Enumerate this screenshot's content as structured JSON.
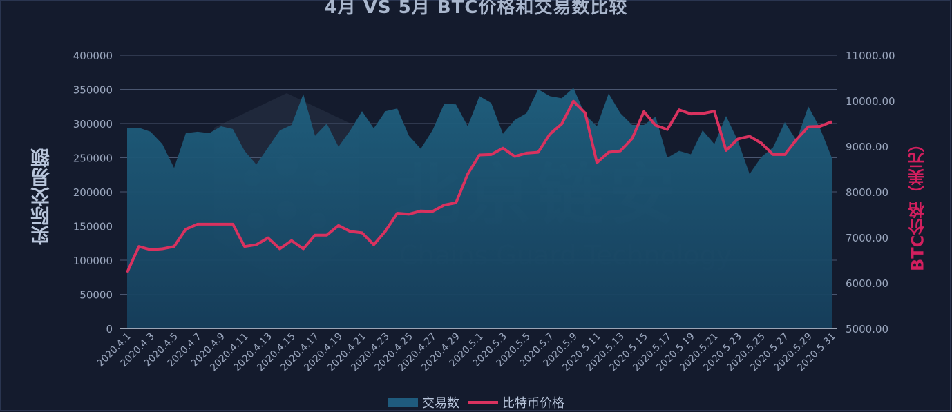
{
  "title": "4月 VS 5月 BTC价格和交易数比较",
  "y_left_label": "实际交易额",
  "y_right_label": "BTC价格（美元）",
  "legend": {
    "area_label": "交易数",
    "line_label": "比特币价格"
  },
  "watermark": {
    "main": "北京链安",
    "sub": "Chains Guard Technology",
    "icon": "shield-hexagon-logo"
  },
  "colors": {
    "background": "#141b2d",
    "area": "#1f5b7d",
    "line": "#d9325f",
    "grid": "#4a5670",
    "tick_text": "#9aa6bd",
    "right_label": "#d21f5e"
  },
  "chart_data": {
    "type": "area",
    "x": [
      "2020.4.1",
      "2020.4.2",
      "2020.4.3",
      "2020.4.4",
      "2020.4.5",
      "2020.4.6",
      "2020.4.7",
      "2020.4.8",
      "2020.4.9",
      "2020.4.10",
      "2020.4.11",
      "2020.4.12",
      "2020.4.13",
      "2020.4.14",
      "2020.4.15",
      "2020.4.16",
      "2020.4.17",
      "2020.4.18",
      "2020.4.19",
      "2020.4.20",
      "2020.4.21",
      "2020.4.22",
      "2020.4.23",
      "2020.4.24",
      "2020.4.25",
      "2020.4.26",
      "2020.4.27",
      "2020.4.28",
      "2020.4.29",
      "2020.4.30",
      "2020.5.1",
      "2020.5.2",
      "2020.5.3",
      "2020.5.4",
      "2020.5.5",
      "2020.5.6",
      "2020.5.7",
      "2020.5.8",
      "2020.5.9",
      "2020.5.10",
      "2020.5.11",
      "2020.5.12",
      "2020.5.13",
      "2020.5.14",
      "2020.5.15",
      "2020.5.16",
      "2020.5.17",
      "2020.5.18",
      "2020.5.19",
      "2020.5.20",
      "2020.5.21",
      "2020.5.22",
      "2020.5.23",
      "2020.5.24",
      "2020.5.25",
      "2020.5.26",
      "2020.5.27",
      "2020.5.28",
      "2020.5.29",
      "2020.5.30",
      "2020.5.31"
    ],
    "x_tick_labels": [
      "2020.4.1",
      "2020.4.3",
      "2020.4.5",
      "2020.4.7",
      "2020.4.9",
      "2020.4.11",
      "2020.4.13",
      "2020.4.15",
      "2020.4.17",
      "2020.4.19",
      "2020.4.21",
      "2020.4.23",
      "2020.4.25",
      "2020.4.27",
      "2020.4.29",
      "2020.5.1",
      "2020.5.3",
      "2020.5.5",
      "2020.5.7",
      "2020.5.9",
      "2020.5.11",
      "2020.5.13",
      "2020.5.15",
      "2020.5.17",
      "2020.5.19",
      "2020.5.21",
      "2020.5.23",
      "2020.5.25",
      "2020.5.27",
      "2020.5.29",
      "2020.5.31"
    ],
    "series": [
      {
        "name": "交易数",
        "type": "area",
        "axis": "left",
        "values": [
          294000,
          294000,
          288000,
          270000,
          235000,
          286000,
          288000,
          286000,
          296000,
          292000,
          260000,
          240000,
          265000,
          290000,
          298000,
          343000,
          282000,
          300000,
          266000,
          290000,
          318000,
          293000,
          318000,
          322000,
          282000,
          263000,
          290000,
          329000,
          328000,
          296000,
          340000,
          330000,
          285000,
          305000,
          315000,
          350000,
          340000,
          337000,
          352000,
          313000,
          296000,
          344000,
          315000,
          298000,
          298000,
          310000,
          250000,
          260000,
          255000,
          290000,
          270000,
          311000,
          275000,
          226000,
          251000,
          265000,
          302000,
          275000,
          325000,
          293000,
          250000
        ]
      },
      {
        "name": "比特币价格",
        "type": "line",
        "axis": "right",
        "values": [
          6230,
          6800,
          6730,
          6750,
          6800,
          7180,
          7290,
          7290,
          7290,
          7290,
          6800,
          6840,
          6990,
          6750,
          6930,
          6750,
          7050,
          7050,
          7260,
          7130,
          7100,
          6840,
          7140,
          7530,
          7510,
          7580,
          7570,
          7710,
          7760,
          8390,
          8810,
          8820,
          8960,
          8780,
          8850,
          8870,
          9270,
          9490,
          9990,
          9730,
          8640,
          8870,
          8900,
          9170,
          9760,
          9460,
          9370,
          9800,
          9710,
          9720,
          9770,
          8910,
          9160,
          9220,
          9070,
          8820,
          8820,
          9150,
          9430,
          9440,
          9540
        ]
      }
    ],
    "y_left": {
      "min": 0,
      "max": 400000,
      "ticks": [
        "0",
        "50000",
        "100000",
        "150000",
        "200000",
        "250000",
        "300000",
        "350000",
        "400000"
      ]
    },
    "y_right": {
      "min": 5000,
      "max": 11000,
      "ticks": [
        "5000.00",
        "6000.00",
        "7000.00",
        "8000.00",
        "9000.00",
        "10000.00",
        "11000.00"
      ]
    },
    "grid": true,
    "legend_position": "bottom"
  }
}
